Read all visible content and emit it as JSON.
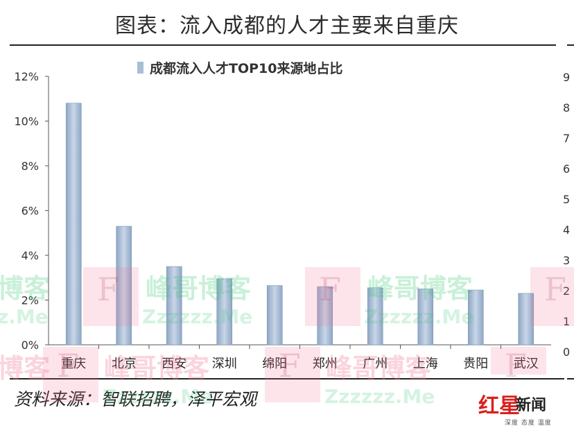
{
  "page": {
    "title": "图表：流入成都的人才主要来自重庆",
    "source": "资料来源：智联招聘，泽平宏观"
  },
  "chart_data": {
    "type": "bar",
    "legend": {
      "label": "成都流入人才TOP10来源地占比",
      "placement": "top-left",
      "color": "#a9bdd6"
    },
    "categories": [
      "重庆",
      "北京",
      "西安",
      "深圳",
      "绵阳",
      "郑州",
      "广州",
      "上海",
      "贵阳",
      "武汉"
    ],
    "values": [
      10.8,
      5.3,
      3.5,
      2.95,
      2.65,
      2.6,
      2.55,
      2.5,
      2.45,
      2.3
    ],
    "value_unit": "%",
    "yticks": [
      "0%",
      "2%",
      "4%",
      "6%",
      "8%",
      "10%",
      "12%"
    ],
    "ylim": [
      0,
      12
    ],
    "grid": false,
    "bar_color": "#a9bdd6"
  },
  "watermarks": {
    "blog": "峰哥博客",
    "blog_partial": "博客",
    "letter": "F",
    "domain": "Zzzzzz.Me",
    "domain_partial": "z.Me"
  },
  "logo": {
    "mark": "红星",
    "word": "新闻",
    "tagline": "深度 态度 温度"
  },
  "right_strip": [
    "9",
    "8",
    "7",
    "6",
    "5",
    "4",
    "3",
    "2",
    "1",
    "0"
  ]
}
